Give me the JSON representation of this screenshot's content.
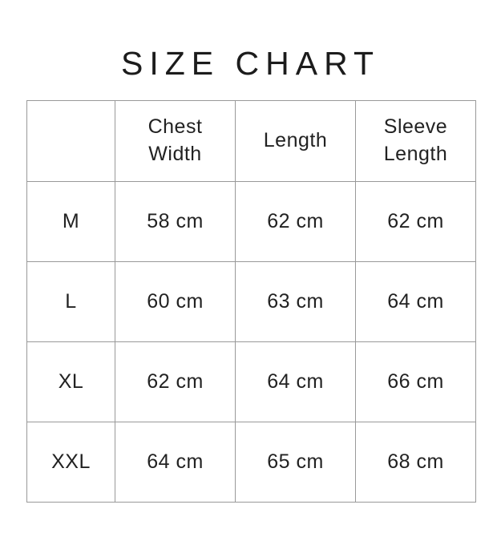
{
  "page": {
    "title": "SIZE CHART",
    "background_color": "#ffffff",
    "text_color": "#1f1f1f",
    "border_color": "#999999"
  },
  "chart_data": {
    "type": "table",
    "title": "SIZE CHART",
    "columns": [
      "",
      "Chest Width",
      "Length",
      "Sleeve Length"
    ],
    "unit": "cm",
    "rows": [
      [
        "M",
        "58 cm",
        "62 cm",
        "62 cm"
      ],
      [
        "L",
        "60 cm",
        "63 cm",
        "64 cm"
      ],
      [
        "XL",
        "62 cm",
        "64 cm",
        "66 cm"
      ],
      [
        "XXL",
        "64 cm",
        "65 cm",
        "68 cm"
      ]
    ],
    "layout_hints": {
      "grid": "on",
      "header_row": true,
      "row_label_column": true
    }
  }
}
